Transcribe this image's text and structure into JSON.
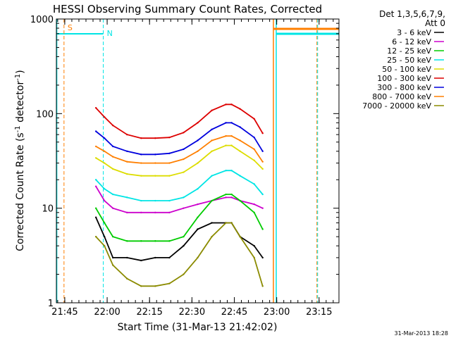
{
  "chart_data": {
    "type": "line",
    "title": "HESSI Observing Summary Count Rates, Corrected",
    "xlabel": "Start Time (31-Mar-13 21:42:02)",
    "ylabel_parts": [
      "Corrected Count Rate (s",
      "-1",
      " detector",
      "-1",
      ")"
    ],
    "yscale": "log",
    "ylim": [
      1,
      1000
    ],
    "xlim_minutes_after_start": [
      0,
      100
    ],
    "x_tick_labels": [
      "21:45",
      "22:00",
      "22:15",
      "22:30",
      "22:45",
      "23:00",
      "23:15"
    ],
    "x_tick_minutes_after_start": [
      2.97,
      17.97,
      32.97,
      47.97,
      62.97,
      77.97,
      92.97
    ],
    "y_tick_labels": [
      "1",
      "10",
      "100",
      "1000"
    ],
    "y_tick_values": [
      1,
      10,
      100,
      1000
    ],
    "legend_header": [
      "Det 1,3,5,6,7,9,",
      "Att 0"
    ],
    "legend_placement": "right",
    "series": [
      {
        "name": "3 - 6 keV",
        "color": "#000000",
        "x": [
          14,
          17,
          20,
          25,
          30,
          35,
          40,
          45,
          50,
          55,
          60,
          62,
          65,
          70,
          73
        ],
        "values": [
          8,
          5,
          3,
          3,
          2.8,
          3,
          3,
          4,
          6,
          7,
          7,
          7,
          5,
          4,
          3
        ]
      },
      {
        "name": "6 - 12 keV",
        "color": "#cc00cc",
        "x": [
          14,
          17,
          20,
          25,
          30,
          35,
          40,
          45,
          50,
          55,
          60,
          62,
          65,
          70,
          73
        ],
        "values": [
          17,
          12,
          10,
          9,
          9,
          9,
          9,
          10,
          11,
          12,
          13,
          13,
          12,
          11,
          10
        ]
      },
      {
        "name": "12 - 25 keV",
        "color": "#00cc00",
        "x": [
          14,
          17,
          20,
          25,
          30,
          35,
          40,
          45,
          50,
          55,
          60,
          62,
          65,
          70,
          73
        ],
        "values": [
          10,
          7,
          5,
          4.5,
          4.5,
          4.5,
          4.5,
          5,
          8,
          12,
          14,
          14,
          12,
          9,
          6
        ]
      },
      {
        "name": "25 - 50 keV",
        "color": "#00e5e5",
        "x": [
          14,
          17,
          20,
          25,
          30,
          35,
          40,
          45,
          50,
          55,
          60,
          62,
          65,
          70,
          73
        ],
        "values": [
          20,
          16,
          14,
          13,
          12,
          12,
          12,
          13,
          16,
          22,
          25,
          25,
          22,
          18,
          14
        ]
      },
      {
        "name": "50 - 100 keV",
        "color": "#dddd00",
        "x": [
          14,
          17,
          20,
          25,
          30,
          35,
          40,
          45,
          50,
          55,
          60,
          62,
          65,
          70,
          73
        ],
        "values": [
          34,
          30,
          26,
          23,
          22,
          22,
          22,
          24,
          30,
          40,
          46,
          46,
          40,
          32,
          26
        ]
      },
      {
        "name": "100 - 300 keV",
        "color": "#dd0000",
        "x": [
          14,
          17,
          20,
          25,
          30,
          35,
          40,
          45,
          50,
          55,
          60,
          62,
          65,
          70,
          73
        ],
        "values": [
          115,
          92,
          75,
          60,
          55,
          55,
          56,
          63,
          80,
          108,
          125,
          125,
          112,
          88,
          62
        ]
      },
      {
        "name": "300 - 800 keV",
        "color": "#0000dd",
        "x": [
          14,
          17,
          20,
          25,
          30,
          35,
          40,
          45,
          50,
          55,
          60,
          62,
          65,
          70,
          73
        ],
        "values": [
          65,
          55,
          45,
          40,
          37,
          37,
          38,
          42,
          52,
          68,
          80,
          80,
          72,
          56,
          40
        ]
      },
      {
        "name": "800 - 7000 keV",
        "color": "#ff7f00",
        "x": [
          14,
          17,
          20,
          25,
          30,
          35,
          40,
          45,
          50,
          55,
          60,
          62,
          65,
          70,
          73
        ],
        "values": [
          45,
          40,
          35,
          31,
          30,
          30,
          30,
          33,
          40,
          52,
          58,
          58,
          52,
          42,
          31
        ]
      },
      {
        "name": "7000 - 20000 keV",
        "color": "#8b8b00",
        "x": [
          14,
          17,
          20,
          25,
          30,
          35,
          40,
          45,
          50,
          55,
          60,
          62,
          65,
          70,
          73
        ],
        "values": [
          5,
          4,
          2.5,
          1.8,
          1.5,
          1.5,
          1.6,
          2,
          3,
          5,
          7,
          7,
          5,
          3,
          1.5
        ]
      }
    ],
    "annotation_labels": [
      "S",
      "N"
    ],
    "footer_date": "31-Mar-2013 18:28"
  }
}
